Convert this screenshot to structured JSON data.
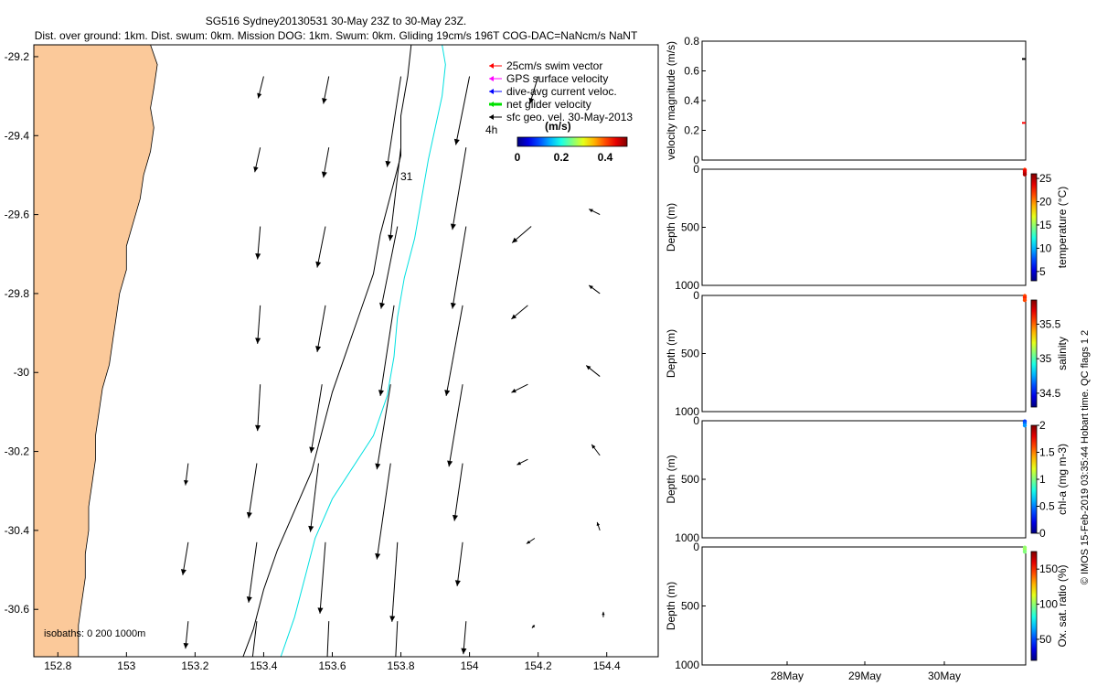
{
  "title": {
    "line1": "SG516 Sydney20130531 30-May 23Z to 30-May 23Z.",
    "line2": "Dist. over ground: 1km. Dist. swum: 0km. Mission DOG: 1km. Swum: 0km. Gliding 19cm/s 196T COG-DAC=NaNcm/s NaNT"
  },
  "side_text": "© IMOS 15-Feb-2019 03:35:44 Hobart time. QC flags 1  2",
  "chart_data": [
    {
      "type": "scatter",
      "xlim": [
        152.73,
        154.55
      ],
      "ylim": [
        -30.72,
        -29.17
      ],
      "xticks": [
        "152.8",
        "153",
        "153.2",
        "153.4",
        "153.6",
        "153.8",
        "154",
        "154.2",
        "154.4"
      ],
      "yticks": [
        "-29.2",
        "-29.4",
        "-29.6",
        "-29.8",
        "-30",
        "-30.2",
        "-30.4",
        "-30.6"
      ],
      "legend": {
        "placement": "top-right",
        "entries": [
          {
            "label": "25cm/s swim vector",
            "color": "#ff0000"
          },
          {
            "label": "GPS surface velocity",
            "color": "#ff00ff"
          },
          {
            "label": "dive-avg current veloc.",
            "color": "#0000ff"
          },
          {
            "label": "net glider velocity",
            "color": "#00e000"
          },
          {
            "label": "sfc geo. vel. 30-May-2013",
            "color": "#000000"
          }
        ]
      },
      "colorbar": {
        "label": "(m/s)",
        "ticks": [
          "0",
          "0.2",
          "0.4"
        ],
        "range": [
          0,
          0.5
        ]
      },
      "annotations": {
        "time_label": "4h",
        "day_label": "31",
        "isobaths": "isobaths: 0    200  1000m"
      },
      "land_color": "#fbc99a",
      "isobath_colors": {
        "200m": "#000000",
        "1000m": "#00e0e0"
      },
      "coastline": [
        [
          153.07,
          -29.17
        ],
        [
          153.09,
          -29.22
        ],
        [
          153.08,
          -29.28
        ],
        [
          153.07,
          -29.33
        ],
        [
          153.08,
          -29.38
        ],
        [
          153.07,
          -29.44
        ],
        [
          153.05,
          -29.5
        ],
        [
          153.04,
          -29.56
        ],
        [
          153.02,
          -29.62
        ],
        [
          153.0,
          -29.68
        ],
        [
          153.0,
          -29.74
        ],
        [
          152.98,
          -29.8
        ],
        [
          152.97,
          -29.86
        ],
        [
          152.96,
          -29.92
        ],
        [
          152.95,
          -29.98
        ],
        [
          152.93,
          -30.04
        ],
        [
          152.92,
          -30.1
        ],
        [
          152.91,
          -30.16
        ],
        [
          152.91,
          -30.22
        ],
        [
          152.9,
          -30.28
        ],
        [
          152.89,
          -30.34
        ],
        [
          152.89,
          -30.4
        ],
        [
          152.88,
          -30.46
        ],
        [
          152.88,
          -30.52
        ],
        [
          152.87,
          -30.58
        ],
        [
          152.86,
          -30.64
        ],
        [
          152.86,
          -30.72
        ]
      ],
      "isobath_200m": [
        [
          153.83,
          -29.17
        ],
        [
          153.82,
          -29.25
        ],
        [
          153.8,
          -29.35
        ],
        [
          153.8,
          -29.45
        ],
        [
          153.77,
          -29.55
        ],
        [
          153.74,
          -29.65
        ],
        [
          153.72,
          -29.75
        ],
        [
          153.68,
          -29.85
        ],
        [
          153.64,
          -29.95
        ],
        [
          153.6,
          -30.05
        ],
        [
          153.57,
          -30.15
        ],
        [
          153.54,
          -30.25
        ],
        [
          153.49,
          -30.35
        ],
        [
          153.44,
          -30.45
        ],
        [
          153.4,
          -30.55
        ],
        [
          153.37,
          -30.65
        ],
        [
          153.34,
          -30.72
        ]
      ],
      "isobath_1000m": [
        [
          153.92,
          -29.17
        ],
        [
          153.93,
          -29.22
        ],
        [
          153.92,
          -29.3
        ],
        [
          153.9,
          -29.38
        ],
        [
          153.88,
          -29.46
        ],
        [
          153.86,
          -29.56
        ],
        [
          153.84,
          -29.66
        ],
        [
          153.81,
          -29.76
        ],
        [
          153.79,
          -29.86
        ],
        [
          153.78,
          -29.96
        ],
        [
          153.76,
          -30.06
        ],
        [
          153.72,
          -30.16
        ],
        [
          153.66,
          -30.24
        ],
        [
          153.6,
          -30.32
        ],
        [
          153.55,
          -30.42
        ],
        [
          153.52,
          -30.52
        ],
        [
          153.49,
          -30.62
        ],
        [
          153.45,
          -30.72
        ]
      ],
      "vectors": [
        {
          "lon": 153.4,
          "lat": -29.25,
          "u": -0.02,
          "v": -0.08
        },
        {
          "lon": 153.59,
          "lat": -29.25,
          "u": -0.02,
          "v": -0.1
        },
        {
          "lon": 153.8,
          "lat": -29.25,
          "u": -0.05,
          "v": -0.33
        },
        {
          "lon": 154.0,
          "lat": -29.25,
          "u": -0.05,
          "v": -0.25
        },
        {
          "lon": 154.2,
          "lat": -29.25,
          "u": -0.03,
          "v": -0.1
        },
        {
          "lon": 153.39,
          "lat": -29.43,
          "u": -0.02,
          "v": -0.09
        },
        {
          "lon": 153.59,
          "lat": -29.43,
          "u": -0.02,
          "v": -0.11
        },
        {
          "lon": 153.8,
          "lat": -29.43,
          "u": -0.04,
          "v": -0.34
        },
        {
          "lon": 153.99,
          "lat": -29.43,
          "u": -0.05,
          "v": -0.3
        },
        {
          "lon": 153.39,
          "lat": -29.63,
          "u": -0.01,
          "v": -0.12
        },
        {
          "lon": 153.58,
          "lat": -29.63,
          "u": -0.03,
          "v": -0.15
        },
        {
          "lon": 153.79,
          "lat": -29.63,
          "u": -0.06,
          "v": -0.3
        },
        {
          "lon": 153.99,
          "lat": -29.63,
          "u": -0.05,
          "v": -0.3
        },
        {
          "lon": 154.18,
          "lat": -29.63,
          "u": -0.07,
          "v": -0.06
        },
        {
          "lon": 154.38,
          "lat": -29.6,
          "u": -0.04,
          "v": 0.02
        },
        {
          "lon": 153.39,
          "lat": -29.83,
          "u": -0.01,
          "v": -0.14
        },
        {
          "lon": 153.58,
          "lat": -29.83,
          "u": -0.03,
          "v": -0.17
        },
        {
          "lon": 153.78,
          "lat": -29.83,
          "u": -0.05,
          "v": -0.33
        },
        {
          "lon": 153.98,
          "lat": -29.83,
          "u": -0.06,
          "v": -0.33
        },
        {
          "lon": 154.17,
          "lat": -29.83,
          "u": -0.06,
          "v": -0.05
        },
        {
          "lon": 154.38,
          "lat": -29.8,
          "u": -0.04,
          "v": 0.03
        },
        {
          "lon": 153.39,
          "lat": -30.03,
          "u": -0.01,
          "v": -0.17
        },
        {
          "lon": 153.57,
          "lat": -30.03,
          "u": -0.04,
          "v": -0.25
        },
        {
          "lon": 153.77,
          "lat": -30.03,
          "u": -0.05,
          "v": -0.31
        },
        {
          "lon": 153.98,
          "lat": -30.03,
          "u": -0.05,
          "v": -0.3
        },
        {
          "lon": 154.17,
          "lat": -30.03,
          "u": -0.06,
          "v": -0.03
        },
        {
          "lon": 154.38,
          "lat": -30.01,
          "u": -0.05,
          "v": 0.04
        },
        {
          "lon": 153.18,
          "lat": -30.23,
          "u": -0.01,
          "v": -0.08
        },
        {
          "lon": 153.38,
          "lat": -30.23,
          "u": -0.03,
          "v": -0.2
        },
        {
          "lon": 153.56,
          "lat": -30.23,
          "u": -0.03,
          "v": -0.25
        },
        {
          "lon": 153.77,
          "lat": -30.23,
          "u": -0.05,
          "v": -0.35
        },
        {
          "lon": 153.98,
          "lat": -30.23,
          "u": -0.03,
          "v": -0.21
        },
        {
          "lon": 154.17,
          "lat": -30.22,
          "u": -0.04,
          "v": -0.02
        },
        {
          "lon": 154.38,
          "lat": -30.21,
          "u": -0.03,
          "v": 0.04
        },
        {
          "lon": 153.18,
          "lat": -30.43,
          "u": -0.02,
          "v": -0.12
        },
        {
          "lon": 153.38,
          "lat": -30.43,
          "u": -0.03,
          "v": -0.22
        },
        {
          "lon": 153.58,
          "lat": -30.43,
          "u": -0.02,
          "v": -0.26
        },
        {
          "lon": 153.79,
          "lat": -30.43,
          "u": -0.02,
          "v": -0.29
        },
        {
          "lon": 153.98,
          "lat": -30.43,
          "u": -0.02,
          "v": -0.16
        },
        {
          "lon": 154.19,
          "lat": -30.42,
          "u": -0.03,
          "v": -0.02
        },
        {
          "lon": 154.38,
          "lat": -30.4,
          "u": -0.01,
          "v": 0.03
        },
        {
          "lon": 153.18,
          "lat": -30.63,
          "u": -0.01,
          "v": -0.1
        },
        {
          "lon": 153.38,
          "lat": -30.63,
          "u": -0.02,
          "v": -0.17
        },
        {
          "lon": 153.59,
          "lat": -30.63,
          "u": -0.01,
          "v": -0.23
        },
        {
          "lon": 153.79,
          "lat": -30.63,
          "u": -0.01,
          "v": -0.2
        },
        {
          "lon": 153.99,
          "lat": -30.63,
          "u": -0.01,
          "v": -0.12
        },
        {
          "lon": 154.19,
          "lat": -30.64,
          "u": -0.01,
          "v": -0.01
        },
        {
          "lon": 154.39,
          "lat": -30.62,
          "u": 0.0,
          "v": 0.02
        }
      ]
    },
    {
      "type": "scatter",
      "ylabel": "velocity magnitude (m/s)",
      "ylim": [
        0,
        0.8
      ],
      "yticks": [
        "0",
        "0.2",
        "0.4",
        "0.6",
        "0.8"
      ],
      "points": [
        {
          "x": 1.0,
          "y": 0.68,
          "color": "#000000"
        },
        {
          "x": 1.0,
          "y": 0.25,
          "color": "#ff0000"
        }
      ]
    },
    {
      "type": "scatter",
      "ylabel": "Depth (m)",
      "ylim": [
        1000,
        0
      ],
      "yticks": [
        "0",
        "500",
        "1000"
      ],
      "colorbar": {
        "label": "temperature (°C)",
        "ticks": [
          "5",
          "10",
          "15",
          "20",
          "25"
        ],
        "range": [
          3,
          26
        ]
      },
      "points": [
        {
          "depth": 5,
          "value": 22
        },
        {
          "depth": 15,
          "value": 23.5
        },
        {
          "depth": 30,
          "value": 24
        },
        {
          "depth": 45,
          "value": 25
        }
      ]
    },
    {
      "type": "scatter",
      "ylabel": "Depth (m)",
      "ylim": [
        1000,
        0
      ],
      "yticks": [
        "0",
        "500",
        "1000"
      ],
      "colorbar": {
        "label": "salinity",
        "ticks": [
          "34.5",
          "35",
          "35.5"
        ],
        "range": [
          34.3,
          35.85
        ]
      },
      "points": [
        {
          "depth": 5,
          "value": 35.55
        },
        {
          "depth": 20,
          "value": 35.6
        },
        {
          "depth": 40,
          "value": 35.55
        }
      ]
    },
    {
      "type": "scatter",
      "ylabel": "Depth (m)",
      "ylim": [
        1000,
        0
      ],
      "yticks": [
        "0",
        "500",
        "1000"
      ],
      "colorbar": {
        "label": "chl-a (mg m-3)",
        "ticks": [
          "0",
          "0.5",
          "1",
          "1.5",
          "2"
        ],
        "range": [
          0,
          2
        ]
      },
      "points": [
        {
          "depth": 5,
          "value": 0.35
        },
        {
          "depth": 20,
          "value": 0.45
        },
        {
          "depth": 40,
          "value": 0.55
        }
      ]
    },
    {
      "type": "scatter",
      "ylabel": "Depth (m)",
      "ylim": [
        1000,
        0
      ],
      "yticks": [
        "0",
        "500",
        "1000"
      ],
      "xticks": [
        "28May",
        "29May",
        "30May"
      ],
      "colorbar": {
        "label": "Ox. sat. ratio (%)",
        "ticks": [
          "50",
          "100",
          "150"
        ],
        "range": [
          20,
          175
        ]
      },
      "points": [
        {
          "depth": 5,
          "value": 100
        },
        {
          "depth": 20,
          "value": 102
        },
        {
          "depth": 40,
          "value": 98
        }
      ]
    }
  ]
}
